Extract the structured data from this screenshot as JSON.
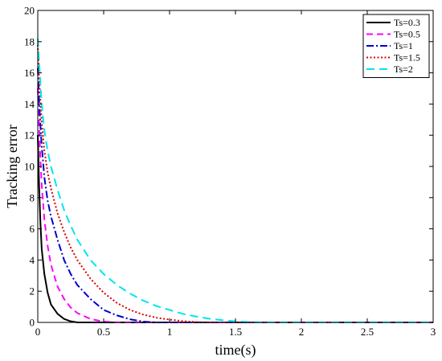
{
  "chart_data": {
    "type": "line",
    "title": "",
    "xlabel": "time(s)",
    "ylabel": "Tracking error",
    "xlim": [
      0,
      3
    ],
    "ylim": [
      0,
      20
    ],
    "xticks": [
      0,
      0.5,
      1,
      1.5,
      2,
      2.5,
      3
    ],
    "xtick_labels": [
      "0",
      "0.5",
      "1",
      "1.5",
      "2",
      "2.5",
      "3"
    ],
    "yticks": [
      0,
      2,
      4,
      6,
      8,
      10,
      12,
      14,
      16,
      18,
      20
    ],
    "ytick_labels": [
      "0",
      "2",
      "4",
      "6",
      "8",
      "10",
      "12",
      "14",
      "16",
      "18",
      "20"
    ],
    "grid": false,
    "legend_position": "top-right",
    "x": [
      0,
      0.01,
      0.02,
      0.03,
      0.05,
      0.075,
      0.1,
      0.15,
      0.2,
      0.25,
      0.3,
      0.4,
      0.5,
      0.6,
      0.7,
      0.8,
      0.9,
      1.0,
      1.1,
      1.2,
      1.3,
      1.4,
      1.5,
      1.6,
      1.7,
      2.0,
      2.5,
      3.0
    ],
    "series": [
      {
        "name": "Ts=0.3",
        "color": "#000000",
        "dash": "solid",
        "values": [
          12.0,
          8.8,
          6.4,
          4.7,
          3.1,
          1.9,
          1.15,
          0.55,
          0.22,
          0.07,
          0.0,
          0,
          0,
          0,
          0,
          0,
          0,
          0,
          0,
          0,
          0,
          0,
          0,
          0,
          0,
          0,
          0,
          0
        ]
      },
      {
        "name": "Ts=0.5",
        "color": "#ff00ff",
        "dash": "dashed",
        "values": [
          15.0,
          12.5,
          10.5,
          8.8,
          6.6,
          4.9,
          3.7,
          2.3,
          1.5,
          0.95,
          0.6,
          0.22,
          0.05,
          0.0,
          0,
          0,
          0,
          0,
          0,
          0,
          0,
          0,
          0,
          0,
          0,
          0,
          0,
          0
        ]
      },
      {
        "name": "Ts=1",
        "color": "#0000cc",
        "dash": "dashdot",
        "values": [
          16.3,
          14.2,
          12.6,
          11.3,
          9.3,
          7.8,
          6.8,
          5.3,
          4.0,
          3.1,
          2.4,
          1.5,
          0.8,
          0.45,
          0.2,
          0.05,
          0.0,
          0,
          0,
          0,
          0,
          0,
          0,
          0,
          0,
          0,
          0,
          0
        ]
      },
      {
        "name": "Ts=1.5",
        "color": "#dd0000",
        "dash": "dotted",
        "values": [
          17.8,
          15.8,
          14.2,
          12.8,
          11.0,
          9.6,
          8.6,
          7.0,
          5.8,
          4.8,
          4.0,
          2.8,
          1.9,
          1.25,
          0.8,
          0.5,
          0.3,
          0.18,
          0.08,
          0.02,
          0.0,
          0,
          0,
          0,
          0,
          0,
          0,
          0
        ]
      },
      {
        "name": "Ts=2",
        "color": "#00e5ee",
        "dash": "longdash",
        "values": [
          18.2,
          16.8,
          15.3,
          14.0,
          12.3,
          11.0,
          10.0,
          8.5,
          7.2,
          6.2,
          5.3,
          4.0,
          3.1,
          2.4,
          1.85,
          1.4,
          1.05,
          0.8,
          0.55,
          0.38,
          0.24,
          0.14,
          0.07,
          0.02,
          0.0,
          0,
          0,
          0
        ]
      }
    ]
  }
}
